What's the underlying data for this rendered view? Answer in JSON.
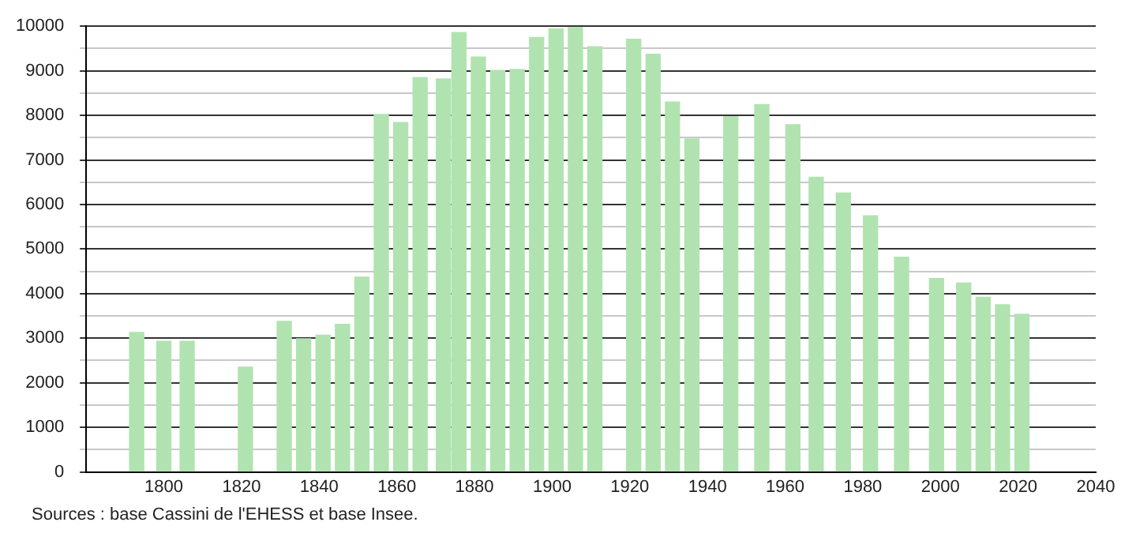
{
  "chart_data": {
    "type": "bar",
    "x": [
      1793,
      1800,
      1806,
      1821,
      1831,
      1836,
      1841,
      1846,
      1851,
      1856,
      1861,
      1866,
      1872,
      1876,
      1881,
      1886,
      1891,
      1896,
      1901,
      1906,
      1911,
      1921,
      1926,
      1931,
      1936,
      1946,
      1954,
      1962,
      1968,
      1975,
      1982,
      1990,
      1999,
      2006,
      2011,
      2016,
      2021
    ],
    "values": [
      3130,
      2930,
      2930,
      2350,
      3380,
      2990,
      3070,
      3310,
      4370,
      8020,
      7840,
      8850,
      8820,
      9860,
      9310,
      9010,
      9030,
      9750,
      9940,
      9970,
      9540,
      9710,
      9370,
      8300,
      7470,
      7970,
      8240,
      7790,
      6610,
      6260,
      5750,
      4820,
      4340,
      4240,
      3920,
      3750,
      3540
    ],
    "color": "#b0e3b0",
    "xlim": [
      1780,
      2040
    ],
    "xticks": [
      1800,
      1820,
      1840,
      1860,
      1880,
      1900,
      1920,
      1940,
      1960,
      1980,
      2000,
      2020,
      2040
    ],
    "ylim": [
      0,
      10000
    ],
    "yticks": [
      0,
      {
        "value": 500,
        "label": null
      },
      1000,
      {
        "value": 1500,
        "label": null
      },
      2000,
      {
        "value": 2500,
        "label": null
      },
      3000,
      {
        "value": 3500,
        "label": null
      },
      4000,
      {
        "value": 4500,
        "label": null
      },
      5000,
      {
        "value": 5500,
        "label": null
      },
      6000,
      {
        "value": 6500,
        "label": null
      },
      7000,
      {
        "value": 7500,
        "label": null
      },
      8000,
      {
        "value": 8500,
        "label": null
      },
      9000,
      {
        "value": 9500,
        "label": null
      },
      10000
    ],
    "grid": "y",
    "legend": false,
    "annotations": [
      "Sources : base Cassini de l'EHESS et base Insee."
    ]
  }
}
